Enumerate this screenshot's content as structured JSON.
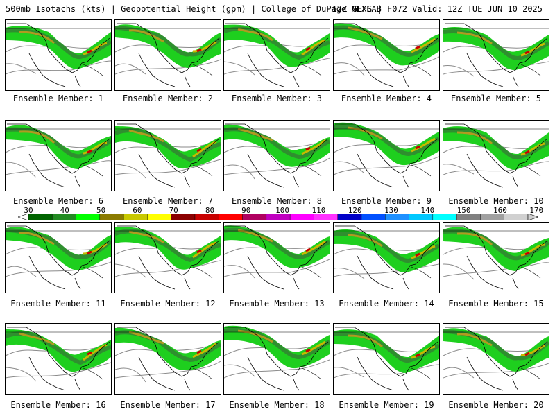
{
  "header": {
    "left_title": "500mb Isotachs (kts) | Geopotential Height (gpm) | College of DuPage NEXLAB",
    "right_title": "12Z GEFS | F072 Valid: 12Z TUE JUN 10 2025"
  },
  "members": [
    {
      "label": "Ensemble Member: 1"
    },
    {
      "label": "Ensemble Member: 2"
    },
    {
      "label": "Ensemble Member: 3"
    },
    {
      "label": "Ensemble Member: 4"
    },
    {
      "label": "Ensemble Member: 5"
    },
    {
      "label": "Ensemble Member: 6"
    },
    {
      "label": "Ensemble Member: 7"
    },
    {
      "label": "Ensemble Member: 8"
    },
    {
      "label": "Ensemble Member: 9"
    },
    {
      "label": "Ensemble Member: 10"
    },
    {
      "label": "Ensemble Member: 11"
    },
    {
      "label": "Ensemble Member: 12"
    },
    {
      "label": "Ensemble Member: 13"
    },
    {
      "label": "Ensemble Member: 14"
    },
    {
      "label": "Ensemble Member: 15"
    },
    {
      "label": "Ensemble Member: 16"
    },
    {
      "label": "Ensemble Member: 17"
    },
    {
      "label": "Ensemble Member: 18"
    },
    {
      "label": "Ensemble Member: 19"
    },
    {
      "label": "Ensemble Member: 20"
    }
  ],
  "colorbar": {
    "ticks": [
      "30",
      "40",
      "50",
      "60",
      "70",
      "80",
      "90",
      "100",
      "110",
      "120",
      "130",
      "140",
      "150",
      "160",
      "170"
    ],
    "colors": [
      "#006400",
      "#228b22",
      "#00ff00",
      "#8b7b00",
      "#c8c800",
      "#ffff00",
      "#8b0000",
      "#c80000",
      "#ff0000",
      "#b00060",
      "#c000c0",
      "#ff00ff",
      "#ff30ff",
      "#0000c8",
      "#0050ff",
      "#1e90ff",
      "#00c8ff",
      "#00ffff",
      "#808080",
      "#a0a0a0",
      "#d0d0d0"
    ]
  }
}
